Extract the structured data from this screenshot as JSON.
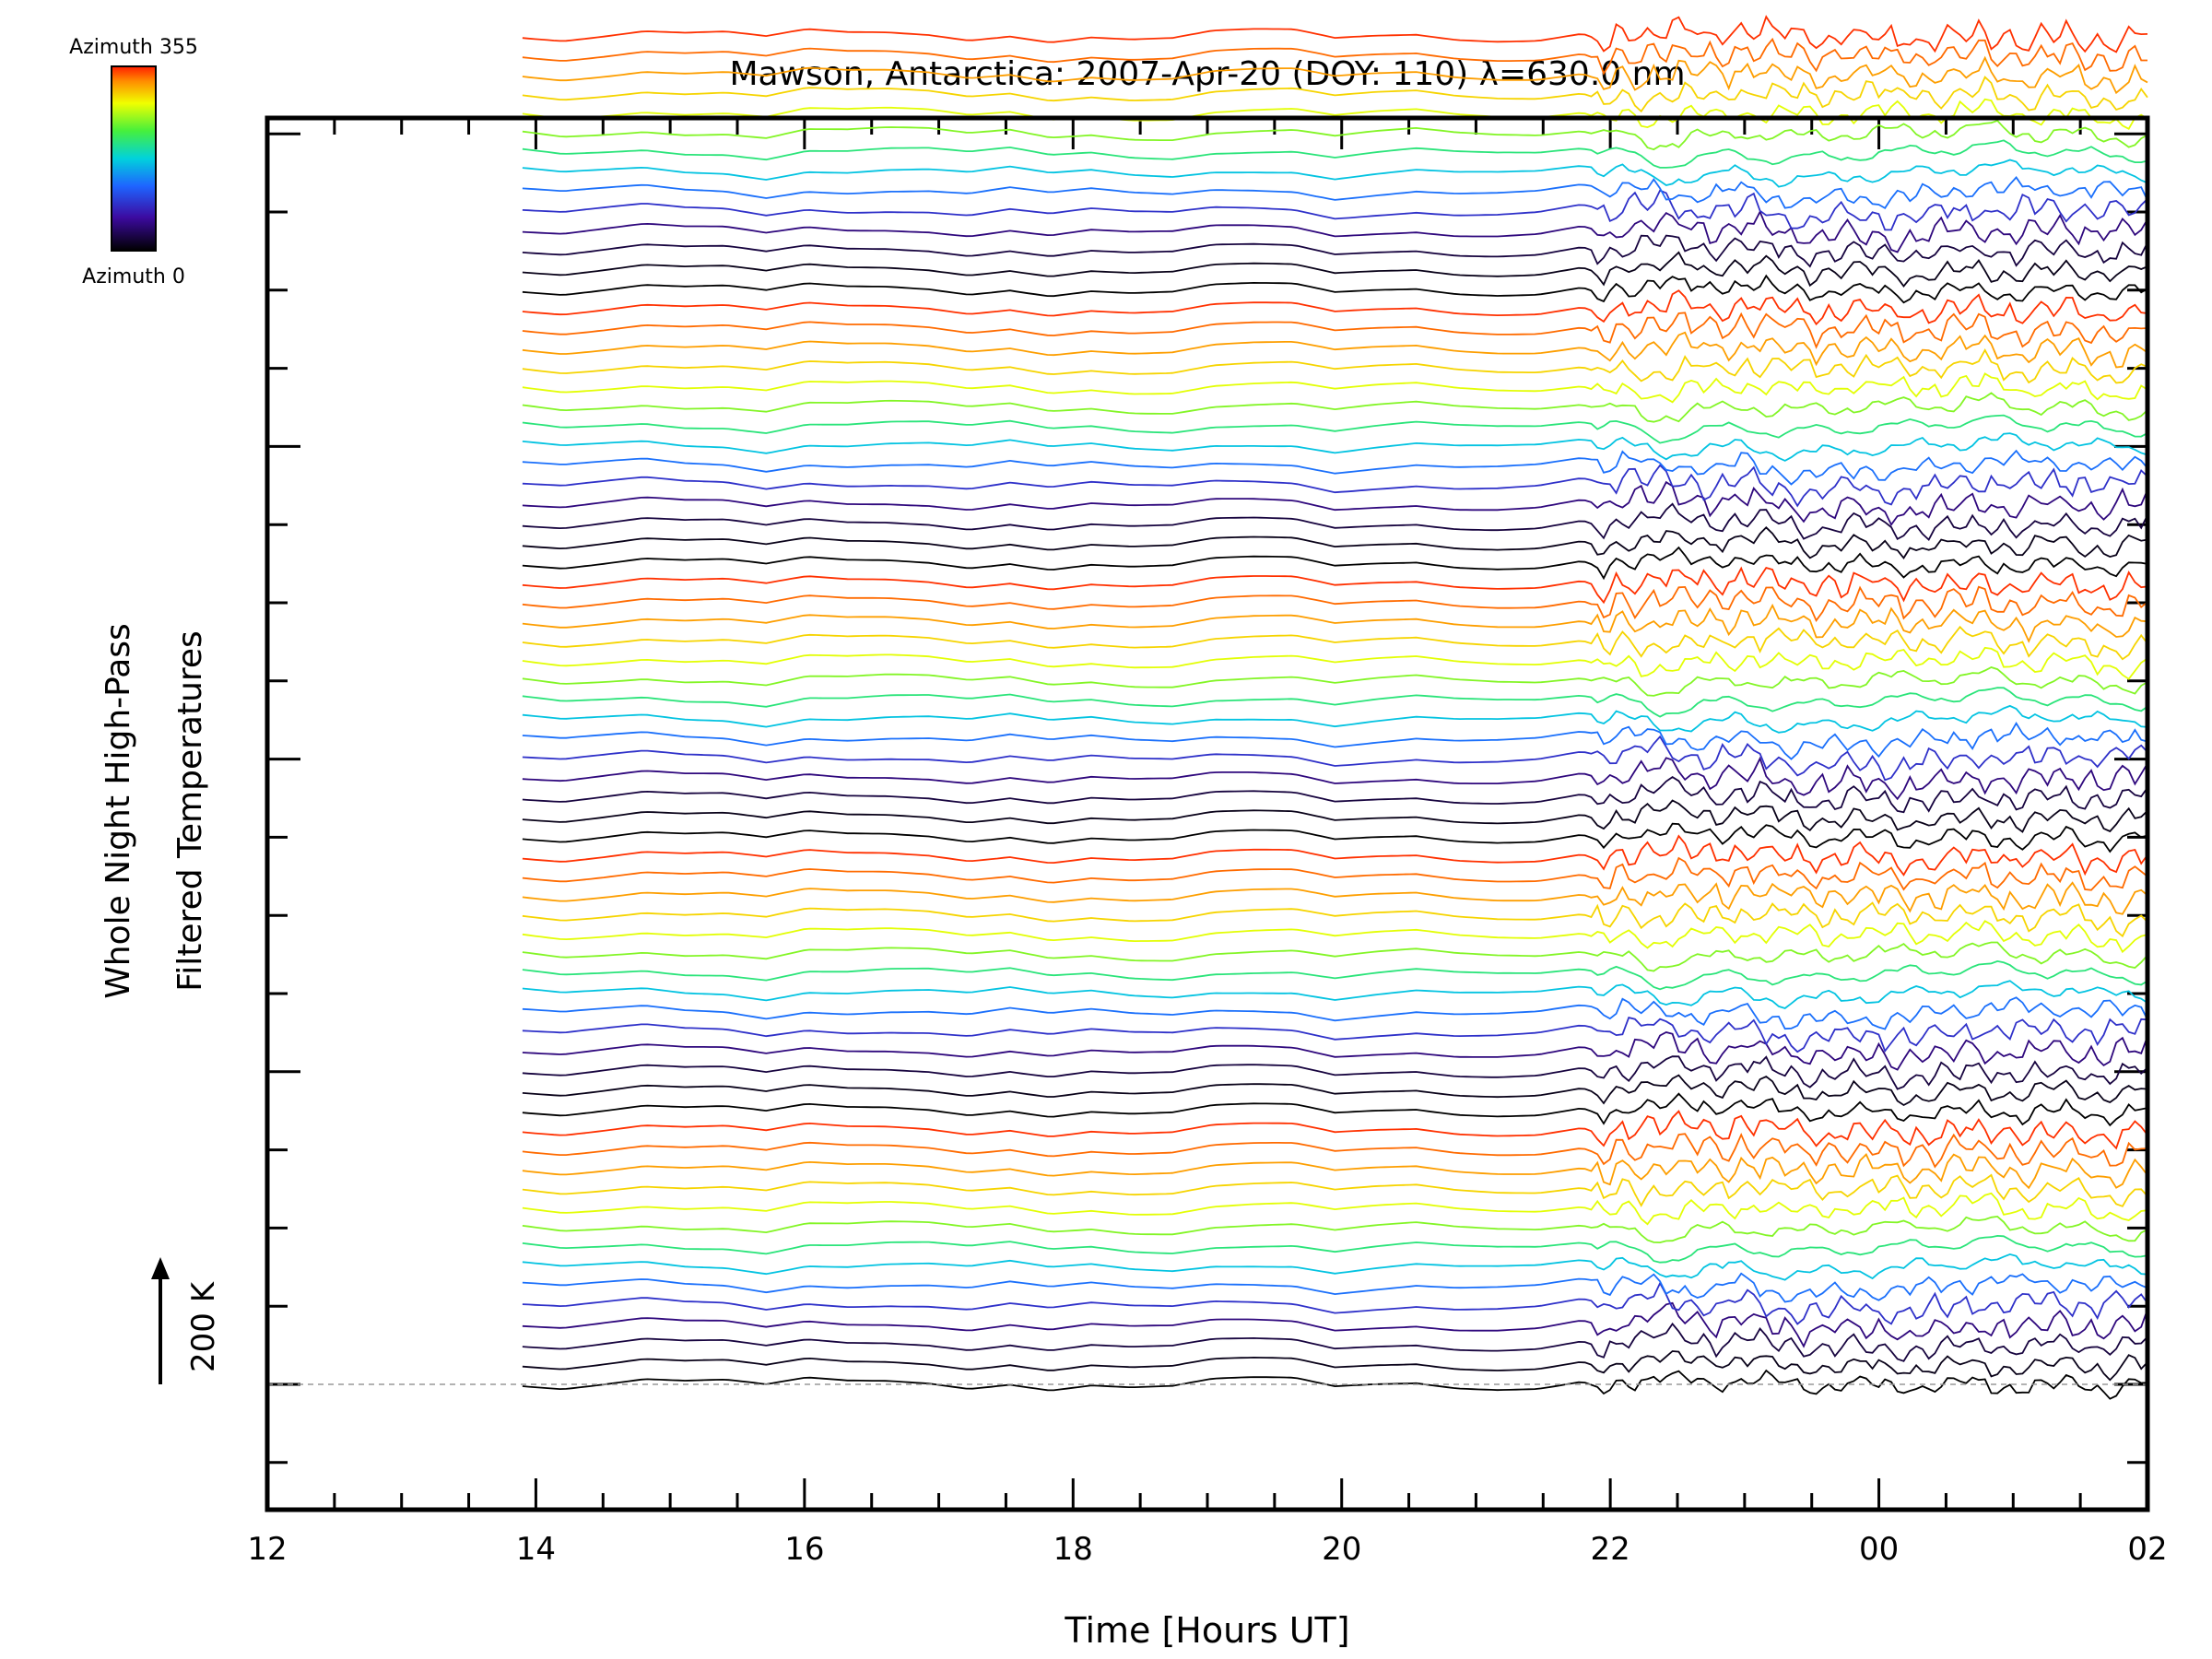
{
  "chart_data": {
    "type": "line",
    "title": "Mawson, Antarctica: 2007-Apr-20 (DOY: 110) λ=630.0 nm",
    "xlabel": "Time [Hours UT]",
    "ylabel_line1": "Whole Night High-Pass",
    "ylabel_line2": "Filtered Temperatures",
    "x_tick_labels": [
      "12",
      "14",
      "16",
      "18",
      "20",
      "22",
      "00",
      "02"
    ],
    "x_tick_hours": [
      12,
      14,
      16,
      18,
      20,
      22,
      24,
      26
    ],
    "xlim_hours": [
      12,
      26
    ],
    "data_start_hour": 13.9,
    "data_end_hour": 26,
    "scale_bar_label": "200 K",
    "scale_bar_K": 200,
    "colorbar": {
      "top_label": "Azimuth 355",
      "bottom_label": "Azimuth 0"
    },
    "trace_azimuths": [
      0,
      10,
      25,
      50,
      90,
      130,
      170,
      210,
      250,
      280,
      300,
      320,
      335,
      350,
      0,
      10,
      25,
      50,
      90,
      130,
      170,
      210,
      250,
      280,
      300,
      320,
      335,
      350,
      0,
      10,
      25,
      50,
      90,
      130,
      170,
      210,
      250,
      280,
      300,
      320,
      335,
      350,
      0,
      10,
      25,
      50,
      90,
      130,
      170,
      210,
      250,
      280,
      300,
      320,
      335,
      350,
      0,
      10,
      25,
      50,
      90,
      130,
      170,
      210,
      250,
      280,
      300,
      320,
      335,
      350
    ],
    "trace_spacing_K": 50,
    "baseline": "dashed grey line at first trace",
    "grid": false,
    "legend": "colorbar top-left"
  }
}
